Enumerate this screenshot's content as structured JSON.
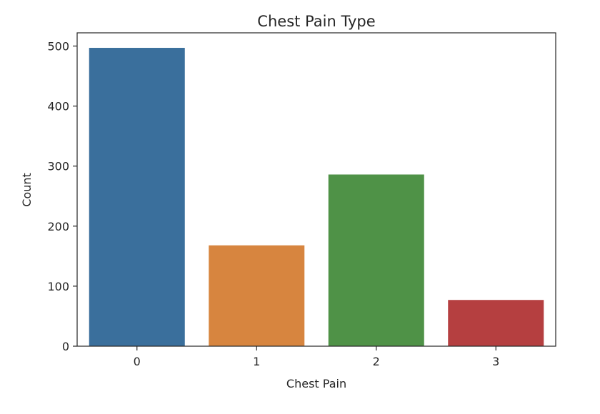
{
  "chart_data": {
    "type": "bar",
    "title": "Chest Pain Type",
    "xlabel": "Chest Pain",
    "ylabel": "Count",
    "categories": [
      "0",
      "1",
      "2",
      "3"
    ],
    "values": [
      497,
      168,
      286,
      77
    ],
    "colors": [
      "#3a6f9c",
      "#d7853f",
      "#4f9247",
      "#b53f40"
    ],
    "ylim": [
      0,
      522
    ],
    "yticks": [
      0,
      100,
      200,
      300,
      400,
      500
    ],
    "grid": false,
    "legend": "none"
  }
}
